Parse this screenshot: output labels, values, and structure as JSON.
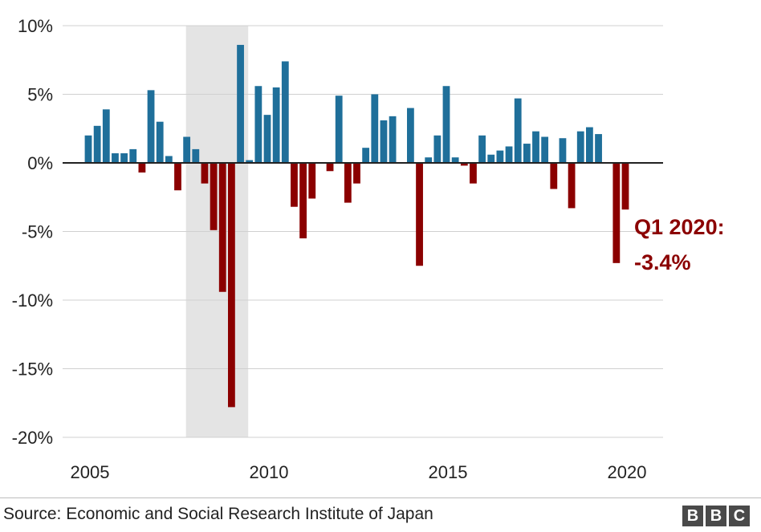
{
  "chart_data": {
    "type": "bar",
    "x_tick_labels": [
      "2005",
      "2010",
      "2015",
      "2020"
    ],
    "y_tick_labels": [
      "10%",
      "5%",
      "0%",
      "-5%",
      "-10%",
      "-15%",
      "-20%"
    ],
    "ylim": [
      -20,
      10
    ],
    "y_ticks": [
      10,
      5,
      0,
      -5,
      -10,
      -15,
      -20
    ],
    "grid": "horizontal",
    "quarter_range": [
      "2005 Q1",
      "2020 Q1"
    ],
    "shaded_period": [
      "2007 Q4",
      "2009 Q2"
    ],
    "values": [
      2.0,
      2.7,
      3.9,
      0.7,
      0.7,
      1.0,
      -0.7,
      5.3,
      3.0,
      0.5,
      -2.0,
      1.9,
      1.0,
      -1.5,
      -4.9,
      -9.4,
      -17.8,
      8.6,
      0.2,
      5.6,
      3.5,
      5.5,
      7.4,
      -3.2,
      -5.5,
      -2.6,
      0.0,
      -0.6,
      4.9,
      -2.9,
      -1.5,
      1.1,
      5.0,
      3.1,
      3.4,
      0.0,
      4.0,
      -7.5,
      0.4,
      2.0,
      5.6,
      0.4,
      -0.2,
      -1.5,
      2.0,
      0.6,
      0.9,
      1.2,
      4.7,
      1.4,
      2.3,
      1.9,
      -1.9,
      1.8,
      -3.3,
      2.3,
      2.6,
      2.1,
      0.0,
      -7.3,
      -3.4
    ],
    "positive_color": "#1f6f9a",
    "negative_color": "#8b0000",
    "shade_color": "#e4e4e4",
    "annotation": {
      "line1": "Q1 2020:",
      "line2": "-3.4%"
    }
  },
  "footer": {
    "source": "Source: Economic and Social Research Institute of Japan",
    "logo_letters": [
      "B",
      "B",
      "C"
    ]
  }
}
